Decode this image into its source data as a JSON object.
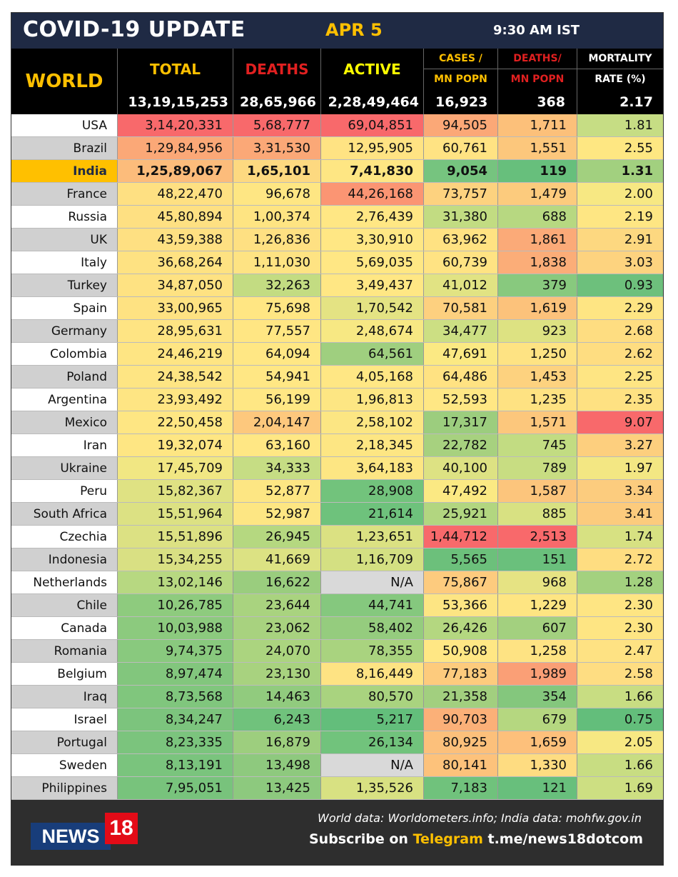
{
  "header": {
    "title": "COVID-19 UPDATE",
    "date": "APR 5",
    "time": "9:30 AM IST"
  },
  "columns": {
    "world_label": "WORLD",
    "total": "TOTAL",
    "deaths": "DEATHS",
    "active": "ACTIVE",
    "cases_mn_1": "CASES /",
    "cases_mn_2": "MN POPN",
    "deaths_mn_1": "DEATHS/",
    "deaths_mn_2": "MN POPN",
    "mortality_1": "MORTALITY",
    "mortality_2": "RATE (%)"
  },
  "world_totals": {
    "total": "13,19,15,253",
    "deaths": "28,65,966",
    "active": "2,28,49,464",
    "cases_mn": "16,923",
    "deaths_mn": "368",
    "mortality": "2.17"
  },
  "colors": {
    "header_bg": "#1f2a44",
    "accent_yellow": "#ffc000",
    "deaths_red": "#e02020",
    "active_yellow": "#ffff00",
    "india_row": "#ffc000"
  },
  "rows": [
    {
      "country": "USA",
      "total": "3,14,20,331",
      "deaths": "5,68,777",
      "active": "69,04,851",
      "cases_mn": "94,505",
      "deaths_mn": "1,711",
      "mortality": "1.81",
      "bg": [
        "#f8696b",
        "#f8696b",
        "#f8696b",
        "#fba877",
        "#fcc07a",
        "#c6dd84"
      ]
    },
    {
      "country": "Brazil",
      "total": "1,29,84,956",
      "deaths": "3,31,530",
      "active": "12,95,905",
      "cases_mn": "60,761",
      "deaths_mn": "1,551",
      "mortality": "2.55",
      "bg": [
        "#fba877",
        "#fba877",
        "#ffe383",
        "#ffe383",
        "#fcc77c",
        "#fee782"
      ]
    },
    {
      "country": "India",
      "total": "1,25,89,067",
      "deaths": "1,65,101",
      "active": "7,41,830",
      "cases_mn": "9,054",
      "deaths_mn": "119",
      "mortality": "1.31",
      "bg": [
        "#fcbc7b",
        "#fdd980",
        "#fee683",
        "#76c47f",
        "#67bf7c",
        "#a2d07f"
      ],
      "highlight": true
    },
    {
      "country": "France",
      "total": "48,22,470",
      "deaths": "96,678",
      "active": "44,26,168",
      "cases_mn": "73,757",
      "deaths_mn": "1,479",
      "mortality": "2.00",
      "bg": [
        "#fee082",
        "#fee683",
        "#fb9573",
        "#fdd27f",
        "#fccb7d",
        "#f7e883"
      ]
    },
    {
      "country": "Russia",
      "total": "45,80,894",
      "deaths": "1,00,374",
      "active": "2,76,439",
      "cases_mn": "31,380",
      "deaths_mn": "688",
      "mortality": "2.19",
      "bg": [
        "#fee082",
        "#fee482",
        "#ffe784",
        "#c2dc82",
        "#b7d881",
        "#fee683"
      ]
    },
    {
      "country": "UK",
      "total": "43,59,388",
      "deaths": "1,26,836",
      "active": "3,30,910",
      "cases_mn": "63,962",
      "deaths_mn": "1,861",
      "mortality": "2.91",
      "bg": [
        "#fee082",
        "#fee082",
        "#ffe784",
        "#ffe282",
        "#fbaa78",
        "#fdd880"
      ]
    },
    {
      "country": "Italy",
      "total": "36,68,264",
      "deaths": "1,11,030",
      "active": "5,69,035",
      "cases_mn": "60,739",
      "deaths_mn": "1,838",
      "mortality": "3.03",
      "bg": [
        "#fee282",
        "#fee383",
        "#ffe784",
        "#ffe383",
        "#fbad78",
        "#fdd37f"
      ]
    },
    {
      "country": "Turkey",
      "total": "34,87,050",
      "deaths": "32,263",
      "active": "3,49,437",
      "cases_mn": "41,012",
      "deaths_mn": "379",
      "mortality": "0.93",
      "bg": [
        "#fee282",
        "#c3dc82",
        "#ffe784",
        "#e1e383",
        "#88c97e",
        "#6dc07c"
      ]
    },
    {
      "country": "Spain",
      "total": "33,00,965",
      "deaths": "75,698",
      "active": "1,70,542",
      "cases_mn": "70,581",
      "deaths_mn": "1,619",
      "mortality": "2.29",
      "bg": [
        "#fee282",
        "#ffe683",
        "#e4e383",
        "#fdd07f",
        "#fcc27b",
        "#fee583"
      ]
    },
    {
      "country": "Germany",
      "total": "28,95,631",
      "deaths": "77,557",
      "active": "2,48,674",
      "cases_mn": "34,477",
      "deaths_mn": "923",
      "mortality": "2.68",
      "bg": [
        "#fee483",
        "#ffe683",
        "#f7e883",
        "#ccdf83",
        "#dde282",
        "#fedd81"
      ]
    },
    {
      "country": "Colombia",
      "total": "24,46,219",
      "deaths": "64,094",
      "active": "64,561",
      "cases_mn": "47,691",
      "deaths_mn": "1,250",
      "mortality": "2.62",
      "bg": [
        "#fee583",
        "#ffe784",
        "#9fcf7f",
        "#fbe983",
        "#fee383",
        "#fedd81"
      ]
    },
    {
      "country": "Poland",
      "total": "24,38,542",
      "deaths": "54,941",
      "active": "4,05,168",
      "cases_mn": "64,486",
      "deaths_mn": "1,453",
      "mortality": "2.25",
      "bg": [
        "#fee583",
        "#ffe784",
        "#ffe784",
        "#ffe282",
        "#fdd27f",
        "#fee583"
      ]
    },
    {
      "country": "Argentina",
      "total": "23,93,492",
      "deaths": "56,199",
      "active": "1,96,813",
      "cases_mn": "52,593",
      "deaths_mn": "1,235",
      "mortality": "2.35",
      "bg": [
        "#fee583",
        "#ffe784",
        "#fde683",
        "#ffe784",
        "#fee282",
        "#fee182"
      ]
    },
    {
      "country": "Mexico",
      "total": "22,50,458",
      "deaths": "2,04,147",
      "active": "2,58,102",
      "cases_mn": "17,317",
      "deaths_mn": "1,571",
      "mortality": "9.07",
      "bg": [
        "#fee683",
        "#fdc87d",
        "#fce683",
        "#9ccd7e",
        "#fcc77c",
        "#f8696b"
      ]
    },
    {
      "country": "Iran",
      "total": "19,32,074",
      "deaths": "63,160",
      "active": "2,18,345",
      "cases_mn": "22,782",
      "deaths_mn": "745",
      "mortality": "3.27",
      "bg": [
        "#fee683",
        "#ffe784",
        "#fde683",
        "#a7d17f",
        "#c2dc82",
        "#fdcf7e"
      ]
    },
    {
      "country": "Ukraine",
      "total": "17,45,709",
      "deaths": "34,333",
      "active": "3,64,183",
      "cases_mn": "40,100",
      "deaths_mn": "789",
      "mortality": "1.97",
      "bg": [
        "#f1e783",
        "#c6dd84",
        "#fde683",
        "#dde283",
        "#c8dd82",
        "#f3e783"
      ]
    },
    {
      "country": "Peru",
      "total": "15,82,367",
      "deaths": "52,877",
      "active": "28,908",
      "cases_mn": "47,492",
      "deaths_mn": "1,587",
      "mortality": "3.34",
      "bg": [
        "#dfe283",
        "#fde683",
        "#72c37c",
        "#fbe983",
        "#fcc57c",
        "#fccc7e"
      ]
    },
    {
      "country": "South Africa",
      "total": "15,51,964",
      "deaths": "52,987",
      "active": "21,614",
      "cases_mn": "25,921",
      "deaths_mn": "885",
      "mortality": "3.41",
      "bg": [
        "#dce183",
        "#fde683",
        "#6ec27c",
        "#b2d680",
        "#d8e182",
        "#fccb7d"
      ]
    },
    {
      "country": "Czechia",
      "total": "15,51,896",
      "deaths": "26,945",
      "active": "1,23,651",
      "cases_mn": "1,44,712",
      "deaths_mn": "2,513",
      "mortality": "1.74",
      "bg": [
        "#dce183",
        "#b5d880",
        "#dbe182",
        "#f8696b",
        "#f8696b",
        "#d7e182"
      ]
    },
    {
      "country": "Indonesia",
      "total": "15,34,255",
      "deaths": "41,669",
      "active": "1,16,709",
      "cases_mn": "5,565",
      "deaths_mn": "151",
      "mortality": "2.72",
      "bg": [
        "#d9e083",
        "#dce283",
        "#d4e082",
        "#6cc07b",
        "#6ac07c",
        "#fedd81"
      ]
    },
    {
      "country": "Netherlands",
      "total": "13,02,146",
      "deaths": "16,622",
      "active": "N/A",
      "cases_mn": "75,867",
      "deaths_mn": "968",
      "mortality": "1.28",
      "bg": [
        "#b7d881",
        "#9acd7e",
        "#d9d9d9",
        "#fdcb7e",
        "#e6e383",
        "#a3d17f"
      ]
    },
    {
      "country": "Chile",
      "total": "10,26,785",
      "deaths": "23,644",
      "active": "44,741",
      "cases_mn": "53,366",
      "deaths_mn": "1,229",
      "mortality": "2.30",
      "bg": [
        "#8ecb7e",
        "#a9d37f",
        "#85c87e",
        "#fde583",
        "#fee582",
        "#fee583"
      ]
    },
    {
      "country": "Canada",
      "total": "10,03,988",
      "deaths": "23,062",
      "active": "58,402",
      "cases_mn": "26,426",
      "deaths_mn": "607",
      "mortality": "2.30",
      "bg": [
        "#8cca7e",
        "#a8d27f",
        "#95cc7e",
        "#b4d780",
        "#a3d07f",
        "#fee583"
      ]
    },
    {
      "country": "Romania",
      "total": "9,74,375",
      "deaths": "24,070",
      "active": "78,355",
      "cases_mn": "50,908",
      "deaths_mn": "1,258",
      "mortality": "2.47",
      "bg": [
        "#89c97e",
        "#abd47f",
        "#a9d37f",
        "#ffe784",
        "#fee383",
        "#fee283"
      ]
    },
    {
      "country": "Belgium",
      "total": "8,97,474",
      "deaths": "23,130",
      "active": "8,16,449",
      "cases_mn": "77,183",
      "deaths_mn": "1,989",
      "mortality": "2.58",
      "bg": [
        "#82c67d",
        "#a8d27f",
        "#fee383",
        "#fdcb7d",
        "#fa9f76",
        "#fedd82"
      ]
    },
    {
      "country": "Iraq",
      "total": "8,73,568",
      "deaths": "14,463",
      "active": "80,570",
      "cases_mn": "21,358",
      "deaths_mn": "354",
      "mortality": "1.66",
      "bg": [
        "#80c67d",
        "#91cb7e",
        "#a9d37f",
        "#a2cf7f",
        "#84c77d",
        "#c8dd82"
      ]
    },
    {
      "country": "Israel",
      "total": "8,34,247",
      "deaths": "6,243",
      "active": "5,217",
      "cases_mn": "90,703",
      "deaths_mn": "679",
      "mortality": "0.75",
      "bg": [
        "#7cc47d",
        "#70c27c",
        "#63be7b",
        "#fbb078",
        "#b5d780",
        "#63be7b"
      ]
    },
    {
      "country": "Portugal",
      "total": "8,23,335",
      "deaths": "16,879",
      "active": "26,134",
      "cases_mn": "80,925",
      "deaths_mn": "1,659",
      "mortality": "2.05",
      "bg": [
        "#7bc47d",
        "#9dce7e",
        "#71c37c",
        "#fcc07b",
        "#fdc07b",
        "#f7e883"
      ]
    },
    {
      "country": "Sweden",
      "total": "8,13,191",
      "deaths": "13,498",
      "active": "N/A",
      "cases_mn": "80,141",
      "deaths_mn": "1,330",
      "mortality": "1.66",
      "bg": [
        "#7ac47d",
        "#8ec97e",
        "#d9d9d9",
        "#fdc27b",
        "#fedc81",
        "#c8dd82"
      ]
    },
    {
      "country": "Philippines",
      "total": "7,95,051",
      "deaths": "13,425",
      "active": "1,35,526",
      "cases_mn": "7,183",
      "deaths_mn": "121",
      "mortality": "1.69",
      "bg": [
        "#78c37c",
        "#8dc97e",
        "#d8e182",
        "#70c27c",
        "#68bf7c",
        "#cddf82"
      ]
    }
  ],
  "footer": {
    "source": "World data: Worldometers.info; India data: mohfw.gov.in",
    "subscribe_prefix": "Subscribe on",
    "subscribe_platform": "Telegram",
    "subscribe_link": "t.me/news18dotcom",
    "logo_text": "NEWS",
    "logo_number": "18"
  }
}
